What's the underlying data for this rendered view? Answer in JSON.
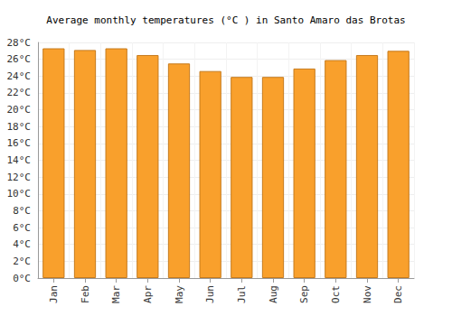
{
  "chart_data": {
    "type": "bar",
    "title": "Average monthly temperatures (°C ) in Santo Amaro das Brotas",
    "categories": [
      "Jan",
      "Feb",
      "Mar",
      "Apr",
      "May",
      "Jun",
      "Jul",
      "Aug",
      "Sep",
      "Oct",
      "Nov",
      "Dec"
    ],
    "values": [
      27.3,
      27.1,
      27.3,
      26.5,
      25.5,
      24.6,
      23.9,
      23.9,
      24.9,
      25.9,
      26.5,
      27.0
    ],
    "color": "#f9a02c",
    "ylim": [
      0,
      28
    ],
    "yticks": [
      {
        "value": 0,
        "label": "0°C"
      },
      {
        "value": 2,
        "label": "2°C"
      },
      {
        "value": 4,
        "label": "4°C"
      },
      {
        "value": 6,
        "label": "6°C"
      },
      {
        "value": 8,
        "label": "8°C"
      },
      {
        "value": 10,
        "label": "10°C"
      },
      {
        "value": 12,
        "label": "12°C"
      },
      {
        "value": 14,
        "label": "14°C"
      },
      {
        "value": 16,
        "label": "16°C"
      },
      {
        "value": 18,
        "label": "18°C"
      },
      {
        "value": 20,
        "label": "20°C"
      },
      {
        "value": 22,
        "label": "22°C"
      },
      {
        "value": 24,
        "label": "24°C"
      },
      {
        "value": 26,
        "label": "26°C"
      },
      {
        "value": 28,
        "label": "28°C"
      }
    ],
    "grid": true
  }
}
